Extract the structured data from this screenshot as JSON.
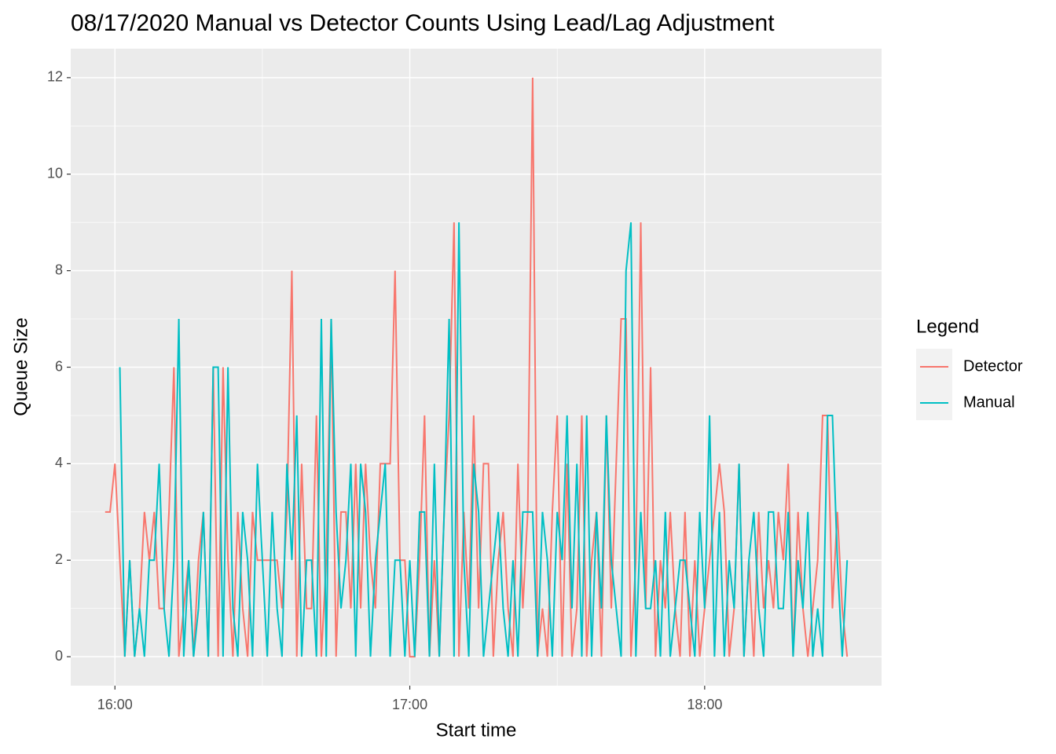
{
  "chart_data": {
    "type": "line",
    "title": "08/17/2020 Manual vs Detector Counts Using Lead/Lag Adjustment",
    "x_label": "Start time",
    "y_label": "Queue Size",
    "legend_title": "Legend",
    "legend_position": "right",
    "grid": true,
    "x": [
      "15:58",
      "15:59",
      "16:00",
      "16:01",
      "16:02",
      "16:03",
      "16:04",
      "16:05",
      "16:06",
      "16:07",
      "16:08",
      "16:09",
      "16:10",
      "16:11",
      "16:12",
      "16:13",
      "16:14",
      "16:15",
      "16:16",
      "16:17",
      "16:18",
      "16:19",
      "16:20",
      "16:21",
      "16:22",
      "16:23",
      "16:24",
      "16:25",
      "16:26",
      "16:27",
      "16:28",
      "16:29",
      "16:30",
      "16:31",
      "16:32",
      "16:33",
      "16:34",
      "16:35",
      "16:36",
      "16:37",
      "16:38",
      "16:39",
      "16:40",
      "16:41",
      "16:42",
      "16:43",
      "16:44",
      "16:45",
      "16:46",
      "16:47",
      "16:48",
      "16:49",
      "16:50",
      "16:51",
      "16:52",
      "16:53",
      "16:54",
      "16:55",
      "16:56",
      "16:57",
      "16:58",
      "16:59",
      "17:00",
      "17:01",
      "17:02",
      "17:03",
      "17:04",
      "17:05",
      "17:06",
      "17:07",
      "17:08",
      "17:09",
      "17:10",
      "17:11",
      "17:12",
      "17:13",
      "17:14",
      "17:15",
      "17:16",
      "17:17",
      "17:18",
      "17:19",
      "17:20",
      "17:21",
      "17:22",
      "17:23",
      "17:24",
      "17:25",
      "17:26",
      "17:27",
      "17:28",
      "17:29",
      "17:30",
      "17:31",
      "17:32",
      "17:33",
      "17:34",
      "17:35",
      "17:36",
      "17:37",
      "17:38",
      "17:39",
      "17:40",
      "17:41",
      "17:42",
      "17:43",
      "17:44",
      "17:45",
      "17:46",
      "17:47",
      "17:48",
      "17:49",
      "17:50",
      "17:51",
      "17:52",
      "17:53",
      "17:54",
      "17:55",
      "17:56",
      "17:57",
      "17:58",
      "17:59",
      "18:00",
      "18:01",
      "18:02",
      "18:03",
      "18:04",
      "18:05",
      "18:06",
      "18:07",
      "18:08",
      "18:09",
      "18:10",
      "18:11",
      "18:12",
      "18:13",
      "18:14",
      "18:15",
      "18:16",
      "18:17",
      "18:18",
      "18:19",
      "18:20",
      "18:21",
      "18:22",
      "18:23",
      "18:24",
      "18:25",
      "18:26",
      "18:27",
      "18:28",
      "18:29"
    ],
    "series": [
      {
        "name": "Detector",
        "color": "#F8766D",
        "values": [
          3,
          3,
          4,
          2,
          0,
          2,
          0,
          1,
          3,
          2,
          3,
          1,
          1,
          3,
          6,
          0,
          1,
          2,
          0,
          2,
          3,
          0,
          6,
          0,
          6,
          2,
          0,
          3,
          1,
          0,
          3,
          2,
          2,
          2,
          2,
          2,
          1,
          3,
          8,
          0,
          4,
          1,
          1,
          5,
          0,
          2,
          7,
          0,
          3,
          3,
          1,
          4,
          1,
          4,
          2,
          1,
          4,
          4,
          4,
          8,
          2,
          2,
          0,
          0,
          2,
          5,
          0,
          2,
          0,
          3,
          5,
          9,
          0,
          3,
          1,
          5,
          1,
          4,
          4,
          0,
          2,
          3,
          1,
          0,
          4,
          1,
          3,
          12,
          0,
          1,
          0,
          3,
          5,
          0,
          4,
          0,
          1,
          5,
          0,
          2,
          3,
          0,
          5,
          1,
          4,
          7,
          7,
          0,
          2,
          9,
          1,
          6,
          0,
          2,
          1,
          3,
          1,
          0,
          3,
          0,
          2,
          0,
          1,
          2,
          3,
          4,
          3,
          0,
          1,
          4,
          0,
          2,
          0,
          3,
          1,
          2,
          1,
          3,
          2,
          4,
          0,
          3,
          1,
          0,
          1,
          2,
          5,
          5,
          1,
          3,
          1,
          0
        ]
      },
      {
        "name": "Manual",
        "color": "#00BFC4",
        "values": [
          null,
          null,
          null,
          6,
          0,
          2,
          0,
          1,
          0,
          2,
          2,
          4,
          1,
          0,
          2,
          7,
          0,
          2,
          0,
          1,
          3,
          0,
          6,
          6,
          0,
          6,
          1,
          0,
          3,
          2,
          0,
          4,
          2,
          0,
          3,
          1,
          0,
          4,
          2,
          5,
          0,
          2,
          2,
          0,
          7,
          0,
          7,
          3,
          1,
          2,
          4,
          0,
          4,
          3,
          0,
          2,
          3,
          4,
          0,
          2,
          2,
          0,
          2,
          0,
          3,
          3,
          0,
          4,
          0,
          3,
          7,
          0,
          9,
          2,
          0,
          4,
          3,
          0,
          1,
          2,
          3,
          1,
          0,
          2,
          0,
          3,
          3,
          3,
          0,
          3,
          2,
          0,
          3,
          2,
          5,
          1,
          4,
          0,
          5,
          0,
          3,
          1,
          5,
          2,
          1,
          0,
          8,
          9,
          0,
          3,
          1,
          1,
          2,
          0,
          3,
          0,
          1,
          2,
          2,
          1,
          0,
          3,
          1,
          5,
          0,
          3,
          0,
          2,
          1,
          4,
          0,
          2,
          3,
          1,
          0,
          3,
          3,
          1,
          1,
          3,
          0,
          2,
          1,
          3,
          0,
          1,
          0,
          5,
          5,
          2,
          0,
          2
        ]
      }
    ],
    "xlim": [
      "15:51",
      "18:36"
    ],
    "xticks": [
      "16:00",
      "17:00",
      "18:00"
    ],
    "ylim": [
      -0.6,
      12.6
    ],
    "yticks": [
      0,
      2,
      4,
      6,
      8,
      10,
      12
    ]
  }
}
